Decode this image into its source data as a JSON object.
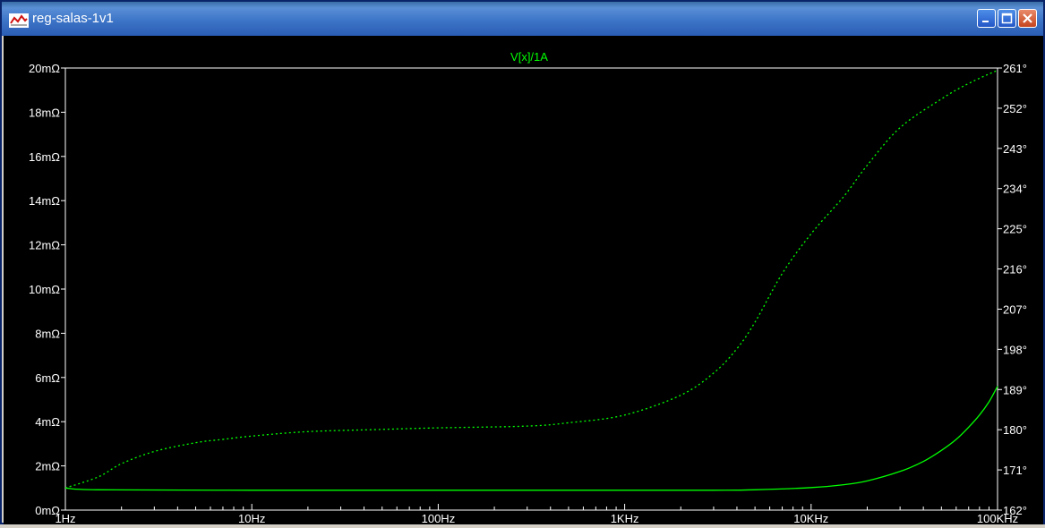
{
  "window": {
    "title": "reg-salas-1v1",
    "minimize_label": "minimize",
    "maximize_label": "maximize",
    "close_label": "close"
  },
  "colors": {
    "trace": "#00ff00",
    "background": "#000000",
    "axis": "#ffffff",
    "titlebar": "#3a6ea5"
  },
  "chart_data": {
    "type": "line",
    "title": "V[x]/1A",
    "xscale": "log",
    "xlim": [
      1,
      100000
    ],
    "x_ticks": [
      "1Hz",
      "10Hz",
      "100Hz",
      "1KHz",
      "10KHz",
      "100KHz"
    ],
    "left_ylim": [
      0,
      20
    ],
    "left_y_ticks": [
      "0mΩ",
      "2mΩ",
      "4mΩ",
      "6mΩ",
      "8mΩ",
      "10mΩ",
      "12mΩ",
      "14mΩ",
      "16mΩ",
      "18mΩ",
      "20mΩ"
    ],
    "right_ylim": [
      162,
      261
    ],
    "right_y_ticks": [
      "162°",
      "171°",
      "180°",
      "189°",
      "198°",
      "207°",
      "216°",
      "225°",
      "234°",
      "243°",
      "252°",
      "261°"
    ],
    "grid": false,
    "series": [
      {
        "style": "solid",
        "axis": "left",
        "x": [
          1,
          1.5,
          10,
          100,
          1000,
          3000,
          5000,
          10000,
          15000,
          20000,
          30000,
          40000,
          50000,
          60000,
          70000,
          80000,
          90000,
          100000
        ],
        "values": [
          1.0,
          0.92,
          0.9,
          0.9,
          0.9,
          0.9,
          0.92,
          1.02,
          1.15,
          1.32,
          1.75,
          2.2,
          2.7,
          3.2,
          3.75,
          4.3,
          4.9,
          5.6
        ]
      },
      {
        "style": "dotted",
        "axis": "left",
        "x": [
          1,
          1.5,
          2,
          3,
          5,
          7,
          10,
          20,
          50,
          100,
          300,
          500,
          1000,
          2000,
          3000,
          4000,
          5000,
          7000,
          10000,
          15000,
          20000,
          30000,
          50000,
          70000,
          100000
        ],
        "values": [
          1.0,
          1.5,
          2.1,
          2.65,
          3.05,
          3.2,
          3.35,
          3.55,
          3.65,
          3.72,
          3.8,
          3.95,
          4.3,
          5.2,
          6.2,
          7.3,
          8.5,
          10.7,
          12.5,
          14.2,
          15.6,
          17.3,
          18.6,
          19.3,
          19.9
        ]
      }
    ]
  }
}
